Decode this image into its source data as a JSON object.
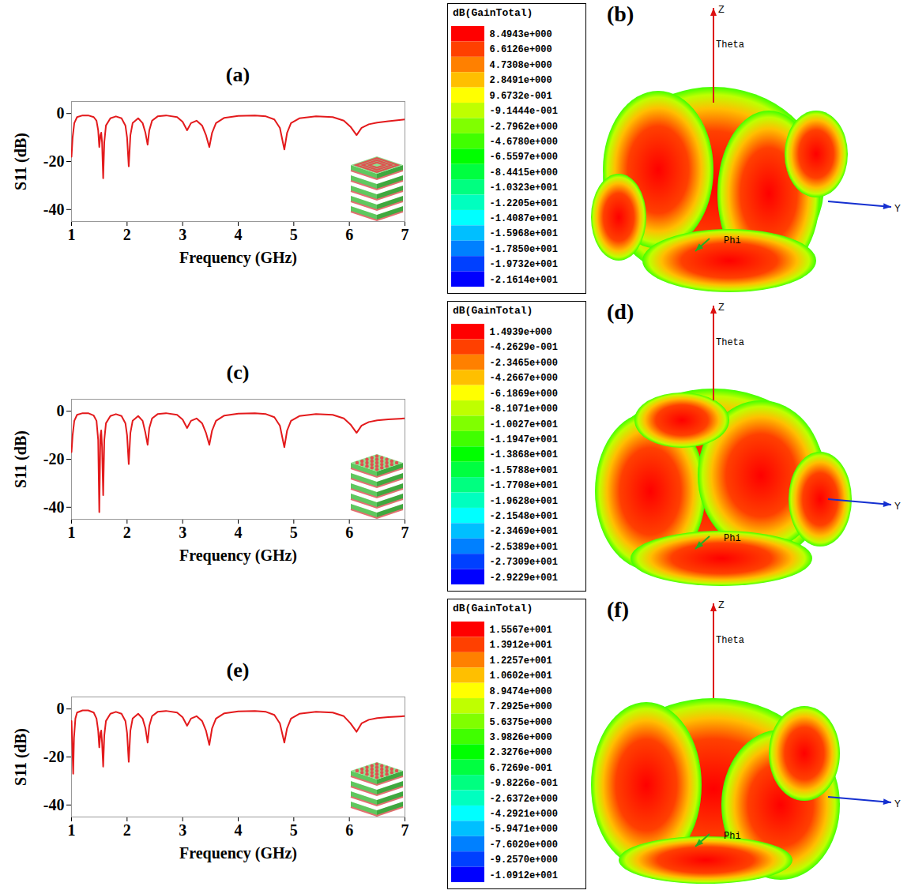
{
  "chart_data": [
    {
      "type": "line",
      "title": "(a)",
      "xlabel": "Frequency (GHz)",
      "ylabel": "S11 (dB)",
      "color": "#e31a1c",
      "x": [
        1.0,
        1.02,
        1.05,
        1.1,
        1.2,
        1.3,
        1.4,
        1.45,
        1.48,
        1.5,
        1.52,
        1.535,
        1.55,
        1.57,
        1.59,
        1.62,
        1.7,
        1.8,
        1.9,
        1.97,
        2.0,
        2.03,
        2.06,
        2.1,
        2.2,
        2.28,
        2.33,
        2.37,
        2.4,
        2.45,
        2.55,
        2.7,
        2.9,
        3.0,
        3.08,
        3.15,
        3.25,
        3.35,
        3.42,
        3.48,
        3.53,
        3.6,
        3.75,
        4.0,
        4.3,
        4.5,
        4.65,
        4.75,
        4.83,
        4.88,
        4.95,
        5.1,
        5.4,
        5.7,
        5.9,
        6.02,
        6.13,
        6.22,
        6.35,
        6.5,
        6.7,
        7.0
      ],
      "values": [
        -18,
        -10,
        -4,
        -1.5,
        -0.8,
        -0.8,
        -1.5,
        -3,
        -7,
        -14,
        -9,
        -8,
        -12,
        -27,
        -12,
        -5,
        -2,
        -1.2,
        -2,
        -5,
        -10,
        -22,
        -9,
        -4,
        -2,
        -4,
        -8,
        -13,
        -7,
        -3,
        -1.2,
        -0.8,
        -1.5,
        -3.5,
        -7,
        -4,
        -3,
        -5,
        -9,
        -14,
        -8,
        -4,
        -1.8,
        -1.0,
        -0.8,
        -1.2,
        -2.5,
        -6,
        -15,
        -8,
        -4,
        -2,
        -1.2,
        -1.5,
        -3,
        -5.5,
        -9,
        -6,
        -4.5,
        -3.8,
        -3.2,
        -2.5
      ],
      "xlim": [
        1,
        7
      ],
      "xticks": [
        1,
        2,
        3,
        4,
        5,
        6,
        7
      ],
      "ylim": [
        -45,
        5
      ],
      "yticks": [
        -40,
        -20,
        0
      ]
    },
    {
      "type": "radiation_pattern_3d",
      "title": "(b)",
      "axis_labels": {
        "z": "Z",
        "theta": "Theta",
        "y": "Y",
        "phi": "Phi"
      },
      "colorbar": {
        "title": "dB(GainTotal)",
        "range": [
          -21.614,
          8.4943
        ],
        "ticks": [
          {
            "value": 8.4943,
            "label": "8.4943e+000"
          },
          {
            "value": 6.6126,
            "label": "6.6126e+000"
          },
          {
            "value": 4.7308,
            "label": "4.7308e+000"
          },
          {
            "value": 2.8491,
            "label": "2.8491e+000"
          },
          {
            "value": 0.96732,
            "label": "9.6732e-001"
          },
          {
            "value": -0.91444,
            "label": "-9.1444e-001"
          },
          {
            "value": -2.7962,
            "label": "-2.7962e+000"
          },
          {
            "value": -4.678,
            "label": "-4.6780e+000"
          },
          {
            "value": -6.5597,
            "label": "-6.5597e+000"
          },
          {
            "value": -8.4415,
            "label": "-8.4415e+000"
          },
          {
            "value": -10.323,
            "label": "-1.0323e+001"
          },
          {
            "value": -12.205,
            "label": "-1.2205e+001"
          },
          {
            "value": -14.087,
            "label": "-1.4087e+001"
          },
          {
            "value": -15.968,
            "label": "-1.5968e+001"
          },
          {
            "value": -17.85,
            "label": "-1.7850e+001"
          },
          {
            "value": -19.732,
            "label": "-1.9732e+001"
          },
          {
            "value": -21.614,
            "label": "-2.1614e+001"
          }
        ],
        "colors": [
          "#ff0000",
          "#ff4000",
          "#ff8000",
          "#ffbf00",
          "#ffff00",
          "#bfff00",
          "#80ff00",
          "#40ff00",
          "#00ff00",
          "#00ff40",
          "#00ff80",
          "#00ffbf",
          "#00ffff",
          "#00bfff",
          "#0080ff",
          "#0040ff",
          "#0000ff"
        ]
      }
    },
    {
      "type": "line",
      "title": "(c)",
      "xlabel": "Frequency (GHz)",
      "ylabel": "S11 (dB)",
      "color": "#e31a1c",
      "x": [
        1.0,
        1.02,
        1.05,
        1.1,
        1.2,
        1.3,
        1.4,
        1.45,
        1.48,
        1.5,
        1.52,
        1.535,
        1.55,
        1.57,
        1.59,
        1.62,
        1.7,
        1.8,
        1.9,
        1.97,
        2.0,
        2.03,
        2.06,
        2.1,
        2.2,
        2.28,
        2.33,
        2.37,
        2.4,
        2.45,
        2.55,
        2.7,
        2.9,
        3.0,
        3.08,
        3.15,
        3.25,
        3.35,
        3.42,
        3.48,
        3.53,
        3.6,
        3.75,
        4.0,
        4.3,
        4.5,
        4.65,
        4.75,
        4.83,
        4.88,
        4.95,
        5.1,
        5.4,
        5.7,
        5.9,
        6.02,
        6.13,
        6.22,
        6.35,
        6.5,
        6.7,
        7.0
      ],
      "values": [
        -17,
        -10,
        -4,
        -1.5,
        -0.8,
        -0.8,
        -1.8,
        -4,
        -12,
        -42,
        -10,
        -8,
        -15,
        -35,
        -12,
        -5,
        -2,
        -1.2,
        -2,
        -5,
        -10,
        -22,
        -9,
        -4,
        -2,
        -4,
        -9,
        -14,
        -7,
        -3,
        -1.2,
        -0.8,
        -1.5,
        -3.5,
        -7,
        -4,
        -3,
        -5,
        -9,
        -14,
        -8,
        -4,
        -1.8,
        -1.0,
        -0.8,
        -1.2,
        -2.5,
        -6,
        -15,
        -8,
        -4,
        -2,
        -1.2,
        -1.5,
        -3,
        -5.5,
        -9,
        -6,
        -4.5,
        -3.8,
        -3.4,
        -3
      ],
      "xlim": [
        1,
        7
      ],
      "xticks": [
        1,
        2,
        3,
        4,
        5,
        6,
        7
      ],
      "ylim": [
        -45,
        5
      ],
      "yticks": [
        -40,
        -20,
        0
      ]
    },
    {
      "type": "radiation_pattern_3d",
      "title": "(d)",
      "axis_labels": {
        "z": "Z",
        "theta": "Theta",
        "y": "Y",
        "phi": "Phi"
      },
      "colorbar": {
        "title": "dB(GainTotal)",
        "range": [
          -29.229,
          1.4939
        ],
        "ticks": [
          {
            "value": 1.4939,
            "label": "1.4939e+000"
          },
          {
            "value": -0.42629,
            "label": "-4.2629e-001"
          },
          {
            "value": -2.3465,
            "label": "-2.3465e+000"
          },
          {
            "value": -4.2667,
            "label": "-4.2667e+000"
          },
          {
            "value": -6.1869,
            "label": "-6.1869e+000"
          },
          {
            "value": -8.1071,
            "label": "-8.1071e+000"
          },
          {
            "value": -10.027,
            "label": "-1.0027e+001"
          },
          {
            "value": -11.947,
            "label": "-1.1947e+001"
          },
          {
            "value": -13.868,
            "label": "-1.3868e+001"
          },
          {
            "value": -15.788,
            "label": "-1.5788e+001"
          },
          {
            "value": -17.708,
            "label": "-1.7708e+001"
          },
          {
            "value": -19.628,
            "label": "-1.9628e+001"
          },
          {
            "value": -21.548,
            "label": "-2.1548e+001"
          },
          {
            "value": -23.469,
            "label": "-2.3469e+001"
          },
          {
            "value": -25.389,
            "label": "-2.5389e+001"
          },
          {
            "value": -27.309,
            "label": "-2.7309e+001"
          },
          {
            "value": -29.229,
            "label": "-2.9229e+001"
          }
        ],
        "colors": [
          "#ff0000",
          "#ff4000",
          "#ff8000",
          "#ffbf00",
          "#ffff00",
          "#bfff00",
          "#80ff00",
          "#40ff00",
          "#00ff00",
          "#00ff40",
          "#00ff80",
          "#00ffbf",
          "#00ffff",
          "#00bfff",
          "#0080ff",
          "#0040ff",
          "#0000ff"
        ]
      }
    },
    {
      "type": "line",
      "title": "(e)",
      "xlabel": "Frequency (GHz)",
      "ylabel": "S11 (dB)",
      "color": "#e31a1c",
      "x": [
        1.0,
        1.015,
        1.03,
        1.045,
        1.07,
        1.1,
        1.2,
        1.3,
        1.4,
        1.45,
        1.48,
        1.5,
        1.52,
        1.535,
        1.55,
        1.57,
        1.59,
        1.62,
        1.7,
        1.8,
        1.9,
        1.97,
        2.0,
        2.03,
        2.06,
        2.1,
        2.2,
        2.28,
        2.33,
        2.37,
        2.4,
        2.45,
        2.55,
        2.7,
        2.9,
        3.0,
        3.08,
        3.15,
        3.25,
        3.35,
        3.42,
        3.48,
        3.53,
        3.6,
        3.75,
        4.0,
        4.3,
        4.5,
        4.65,
        4.75,
        4.83,
        4.88,
        4.95,
        5.1,
        5.4,
        5.7,
        5.9,
        6.02,
        6.13,
        6.22,
        6.35,
        6.5,
        6.7,
        7.0
      ],
      "values": [
        -5,
        -15,
        -27,
        -12,
        -4,
        -1.5,
        -0.6,
        -0.6,
        -1.5,
        -4,
        -9,
        -16,
        -10,
        -9,
        -14,
        -24,
        -11,
        -5,
        -2,
        -1.2,
        -2,
        -5,
        -10,
        -22,
        -9,
        -4,
        -2,
        -4,
        -8,
        -14,
        -7,
        -3,
        -1.2,
        -0.8,
        -1.5,
        -3.5,
        -7,
        -4,
        -3,
        -5,
        -9,
        -15,
        -8,
        -4,
        -1.8,
        -1.0,
        -0.8,
        -1.2,
        -2.5,
        -6,
        -14,
        -8,
        -4,
        -2,
        -1.2,
        -1.5,
        -3,
        -6,
        -9.5,
        -6,
        -4.5,
        -3.8,
        -3.4,
        -3
      ],
      "xlim": [
        1,
        7
      ],
      "xticks": [
        1,
        2,
        3,
        4,
        5,
        6,
        7
      ],
      "ylim": [
        -45,
        5
      ],
      "yticks": [
        -40,
        -20,
        0
      ]
    },
    {
      "type": "radiation_pattern_3d",
      "title": "(f)",
      "axis_labels": {
        "z": "Z",
        "theta": "Theta",
        "y": "Y",
        "phi": "Phi"
      },
      "colorbar": {
        "title": "dB(GainTotal)",
        "range": [
          -10.912,
          15.567
        ],
        "ticks": [
          {
            "value": 15.567,
            "label": "1.5567e+001"
          },
          {
            "value": 13.912,
            "label": "1.3912e+001"
          },
          {
            "value": 12.257,
            "label": "1.2257e+001"
          },
          {
            "value": 10.602,
            "label": "1.0602e+001"
          },
          {
            "value": 8.9474,
            "label": "8.9474e+000"
          },
          {
            "value": 7.2925,
            "label": "7.2925e+000"
          },
          {
            "value": 5.6375,
            "label": "5.6375e+000"
          },
          {
            "value": 3.9826,
            "label": "3.9826e+000"
          },
          {
            "value": 2.3276,
            "label": "2.3276e+000"
          },
          {
            "value": 0.67269,
            "label": "6.7269e-001"
          },
          {
            "value": -0.98226,
            "label": "-9.8226e-001"
          },
          {
            "value": -2.6372,
            "label": "-2.6372e+000"
          },
          {
            "value": -4.2921,
            "label": "-4.2921e+000"
          },
          {
            "value": -5.9471,
            "label": "-5.9471e+000"
          },
          {
            "value": -7.602,
            "label": "-7.6020e+000"
          },
          {
            "value": -9.257,
            "label": "-9.2570e+000"
          },
          {
            "value": -10.912,
            "label": "-1.0912e+001"
          }
        ],
        "colors": [
          "#ff0000",
          "#ff4000",
          "#ff8000",
          "#ffbf00",
          "#ffff00",
          "#bfff00",
          "#80ff00",
          "#40ff00",
          "#00ff00",
          "#00ff40",
          "#00ff80",
          "#00ffbf",
          "#00ffff",
          "#00bfff",
          "#0080ff",
          "#0040ff",
          "#0000ff"
        ]
      }
    }
  ]
}
